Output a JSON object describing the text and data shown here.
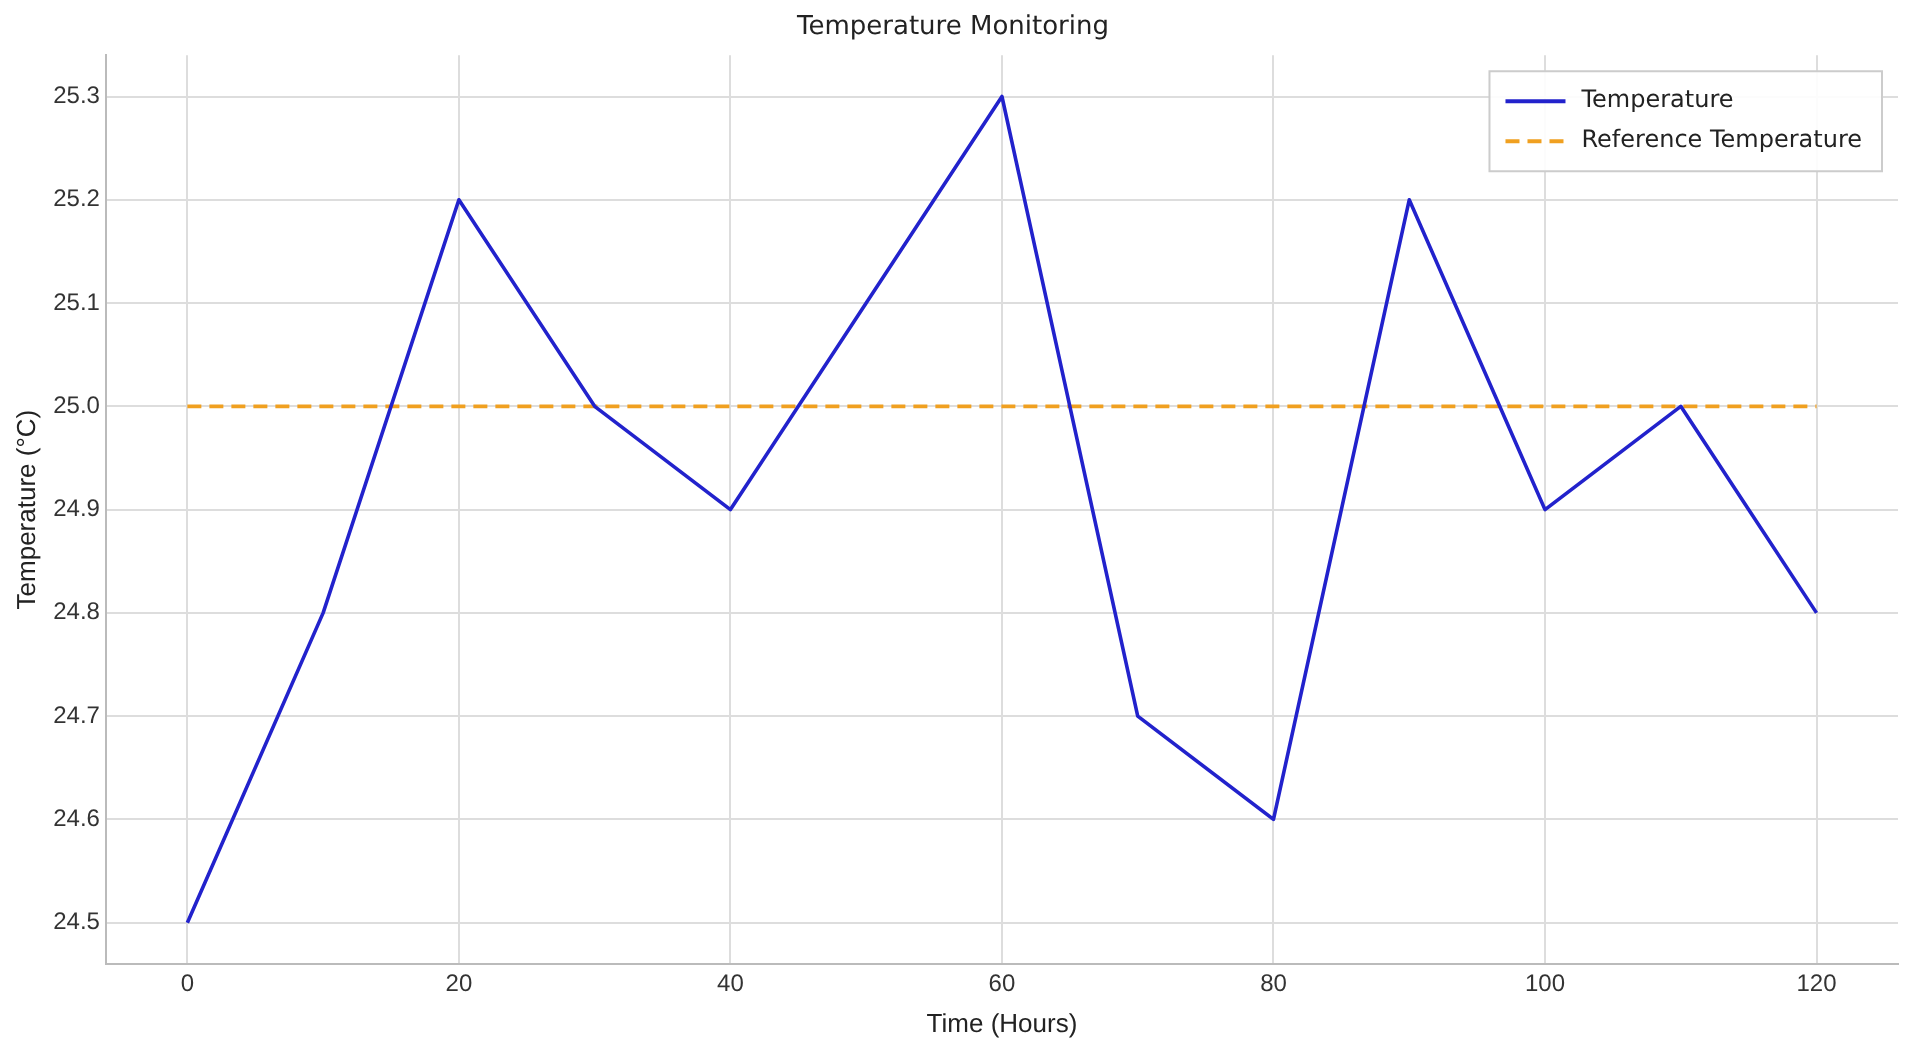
{
  "chart_data": {
    "type": "line",
    "title": "Temperature Monitoring",
    "xlabel": "Time (Hours)",
    "ylabel": "Temperature (°C)",
    "x": [
      0,
      10,
      20,
      30,
      40,
      50,
      60,
      70,
      80,
      90,
      100,
      110,
      120
    ],
    "series": [
      {
        "name": "Temperature",
        "color": "#2222cc",
        "values": [
          24.5,
          24.8,
          25.2,
          25.0,
          24.9,
          25.1,
          25.3,
          24.7,
          24.6,
          25.2,
          24.9,
          25.0,
          24.8
        ],
        "line_style": "solid"
      },
      {
        "name": "Reference Temperature",
        "color": "#f0a020",
        "values": [
          25.0,
          25.0,
          25.0,
          25.0,
          25.0,
          25.0,
          25.0,
          25.0,
          25.0,
          25.0,
          25.0,
          25.0,
          25.0
        ],
        "line_style": "dashed"
      }
    ],
    "xlim": [
      -6,
      126
    ],
    "xticks": [
      0,
      20,
      40,
      60,
      80,
      100,
      120
    ],
    "ylim": [
      24.46,
      25.34
    ],
    "yticks": [
      24.5,
      24.6,
      24.7,
      24.8,
      24.9,
      {
        "value": 25,
        "label": "25.0"
      },
      25.1,
      25.2,
      25.3
    ],
    "grid": true,
    "legend": "top right",
    "marker": "none"
  }
}
